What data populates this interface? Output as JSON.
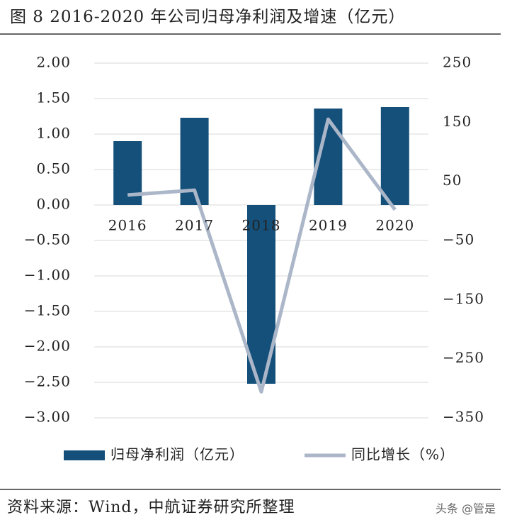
{
  "title": "图 8 2016-2020 年公司归母净利润及增速（亿元）",
  "source": "资料来源：Wind，中航证券研究所整理",
  "watermark": "头条 @管是",
  "chart_data": {
    "type": "bar",
    "categories": [
      "2016",
      "2017",
      "2018",
      "2019",
      "2020"
    ],
    "series": [
      {
        "name": "归母净利润（亿元）",
        "type": "bar",
        "color": "#14507a",
        "values": [
          0.9,
          1.23,
          -2.52,
          1.36,
          1.38
        ]
      },
      {
        "name": "同比增长（%）",
        "type": "line",
        "axis": "y2",
        "color": "#abb6c8",
        "values": [
          27,
          35,
          -306,
          155,
          2
        ]
      }
    ],
    "ylim": [
      -3,
      2
    ],
    "yticks": [
      {
        "value": 2,
        "label": "2.00"
      },
      {
        "value": 1.5,
        "label": "1.50"
      },
      {
        "value": 1,
        "label": "1.00"
      },
      {
        "value": 0.5,
        "label": "0.50"
      },
      {
        "value": 0,
        "label": "0.00"
      },
      {
        "value": -0.5,
        "label": "−0.50"
      },
      {
        "value": -1,
        "label": "−1.00"
      },
      {
        "value": -1.5,
        "label": "−1.50"
      },
      {
        "value": -2,
        "label": "−2.00"
      },
      {
        "value": -2.5,
        "label": "−2.50"
      },
      {
        "value": -3,
        "label": "−3.00"
      }
    ],
    "y2lim": [
      -350,
      250
    ],
    "y2ticks": [
      250,
      150,
      50,
      {
        "value": -50,
        "label": "−50"
      },
      {
        "value": -150,
        "label": "−150"
      },
      {
        "value": -250,
        "label": "−250"
      },
      {
        "value": -350,
        "label": "−350"
      }
    ],
    "grid": true,
    "legend": "bottom"
  }
}
